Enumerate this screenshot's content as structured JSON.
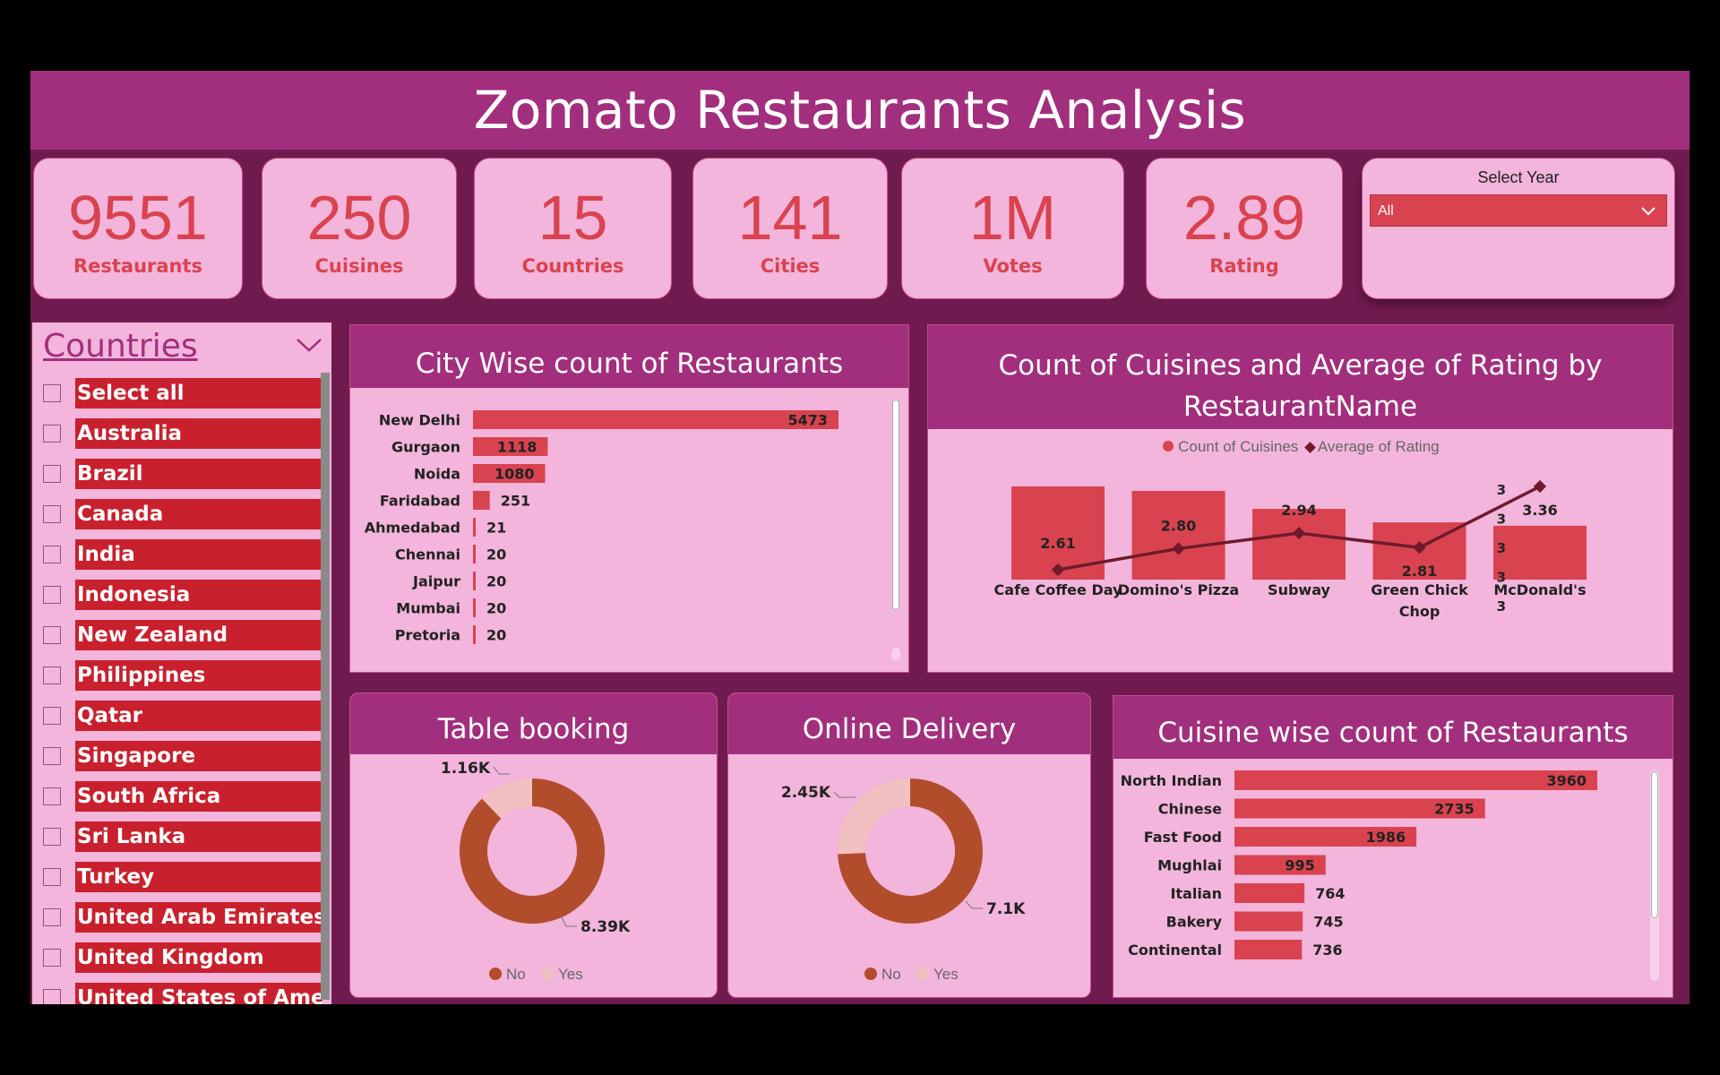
{
  "title": "Zomato Restaurants Analysis",
  "kpis": [
    {
      "value": "9551",
      "label": "Restaurants"
    },
    {
      "value": "250",
      "label": "Cuisines"
    },
    {
      "value": "15",
      "label": "Countries"
    },
    {
      "value": "141",
      "label": "Cities"
    },
    {
      "value": "1M",
      "label": "Votes"
    },
    {
      "value": "2.89",
      "label": "Rating"
    }
  ],
  "year_filter": {
    "label": "Select Year",
    "selected": "All"
  },
  "countries_slicer": {
    "title": "Countries",
    "items": [
      "Select all",
      "Australia",
      "Brazil",
      "Canada",
      "India",
      "Indonesia",
      "New Zealand",
      "Philippines",
      "Qatar",
      "Singapore",
      "South Africa",
      "Sri Lanka",
      "Turkey",
      "United Arab Emirates",
      "United Kingdom",
      "United States of Amer"
    ]
  },
  "colors": {
    "accent": "#a22f7d",
    "bar": "#d9434f",
    "panel": "#f3b5db",
    "background": "#701b50",
    "donut_no": "#b24d2c",
    "donut_yes": "#f1c1c1",
    "line": "#6e1a2c"
  },
  "chart_data": [
    {
      "type": "bar",
      "title": "City Wise count of Restaurants",
      "orientation": "horizontal",
      "categories": [
        "New Delhi",
        "Gurgaon",
        "Noida",
        "Faridabad",
        "Ahmedabad",
        "Chennai",
        "Jaipur",
        "Mumbai",
        "Pretoria"
      ],
      "values": [
        5473,
        1118,
        1080,
        251,
        21,
        20,
        20,
        20,
        20
      ],
      "grid": false
    },
    {
      "type": "bar",
      "title": "Count of Cuisines and Average of Rating by RestaurantName",
      "categories": [
        "Cafe Coffee Day",
        "Domino's Pizza",
        "Subway",
        "Green Chick Chop",
        "McDonald's"
      ],
      "series": [
        {
          "name": "Count of Cuisines",
          "type": "bar",
          "values": [
            83,
            79,
            63,
            51,
            48
          ]
        },
        {
          "name": "Average of Rating",
          "type": "line",
          "values": [
            2.61,
            2.8,
            2.94,
            2.81,
            3.36
          ]
        }
      ],
      "secondary_axis_ticks": [
        "3",
        "3",
        "3",
        "3",
        "3"
      ],
      "legend": "top-center"
    },
    {
      "type": "pie",
      "title": "Table booking",
      "hole": true,
      "labels": [
        "No",
        "Yes"
      ],
      "values": [
        8390,
        1160
      ],
      "value_labels": [
        "8.39K",
        "1.16K"
      ],
      "legend": "bottom-center"
    },
    {
      "type": "pie",
      "title": "Online Delivery",
      "hole": true,
      "labels": [
        "No",
        "Yes"
      ],
      "values": [
        7100,
        2450
      ],
      "value_labels": [
        "7.1K",
        "2.45K"
      ],
      "legend": "bottom-center"
    },
    {
      "type": "bar",
      "title": "Cuisine wise count of Restaurants",
      "orientation": "horizontal",
      "categories": [
        "North Indian",
        "Chinese",
        "Fast Food",
        "Mughlai",
        "Italian",
        "Bakery",
        "Continental"
      ],
      "values": [
        3960,
        2735,
        1986,
        995,
        764,
        745,
        736
      ],
      "grid": false
    }
  ]
}
